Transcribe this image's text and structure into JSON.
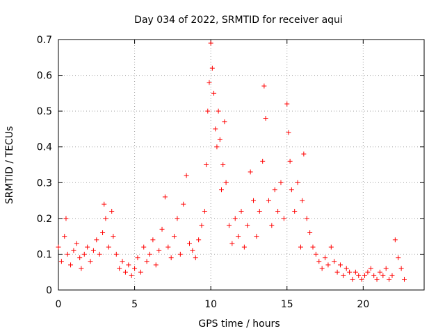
{
  "chart_data": {
    "type": "scatter",
    "title": "Day 034 of 2022, SRMTID for receiver aqui",
    "xlabel": "GPS time / hours",
    "ylabel": "SRMTID / TECUs",
    "xlim": [
      0,
      24
    ],
    "ylim": [
      0,
      0.7
    ],
    "x_ticks": [
      0,
      5,
      10,
      15,
      20
    ],
    "y_ticks": [
      0,
      0.1,
      0.2,
      0.3,
      0.4,
      0.5,
      0.6,
      0.7
    ],
    "x_tick_labels": [
      "0",
      "5",
      "10",
      "15",
      "20"
    ],
    "y_tick_labels": [
      "0",
      "0.1",
      "0.2",
      "0.3",
      "0.4",
      "0.5",
      "0.6",
      "0.7"
    ],
    "grid": true,
    "marker": "plus",
    "series": [
      {
        "name": "SRMTID",
        "color": "#ff0000",
        "x": [
          0.0,
          0.2,
          0.4,
          0.5,
          0.6,
          0.8,
          1.0,
          1.2,
          1.4,
          1.5,
          1.7,
          1.9,
          2.1,
          2.3,
          2.5,
          2.7,
          2.9,
          3.0,
          3.1,
          3.3,
          3.5,
          3.6,
          3.8,
          4.0,
          4.2,
          4.4,
          4.6,
          4.8,
          5.0,
          5.2,
          5.4,
          5.6,
          5.8,
          6.0,
          6.2,
          6.4,
          6.6,
          6.8,
          7.0,
          7.2,
          7.4,
          7.6,
          7.8,
          8.0,
          8.2,
          8.4,
          8.6,
          8.8,
          9.0,
          9.2,
          9.4,
          9.6,
          9.7,
          9.8,
          9.9,
          10.0,
          10.1,
          10.2,
          10.3,
          10.4,
          10.5,
          10.6,
          10.7,
          10.8,
          10.9,
          11.0,
          11.2,
          11.4,
          11.6,
          11.8,
          12.0,
          12.2,
          12.4,
          12.6,
          12.8,
          13.0,
          13.2,
          13.4,
          13.5,
          13.6,
          13.8,
          14.0,
          14.2,
          14.4,
          14.6,
          14.8,
          15.0,
          15.1,
          15.2,
          15.3,
          15.5,
          15.7,
          15.9,
          16.0,
          16.1,
          16.3,
          16.5,
          16.7,
          16.9,
          17.1,
          17.3,
          17.5,
          17.7,
          17.9,
          18.1,
          18.3,
          18.5,
          18.7,
          18.9,
          19.1,
          19.3,
          19.5,
          19.7,
          19.9,
          20.1,
          20.3,
          20.5,
          20.7,
          20.9,
          21.1,
          21.3,
          21.5,
          21.7,
          21.9,
          22.1,
          22.3,
          22.5,
          22.7
        ],
        "values": [
          0.12,
          0.08,
          0.15,
          0.2,
          0.1,
          0.07,
          0.11,
          0.13,
          0.09,
          0.06,
          0.1,
          0.12,
          0.08,
          0.11,
          0.14,
          0.1,
          0.16,
          0.24,
          0.2,
          0.12,
          0.22,
          0.15,
          0.1,
          0.06,
          0.08,
          0.05,
          0.07,
          0.04,
          0.06,
          0.09,
          0.05,
          0.12,
          0.08,
          0.1,
          0.14,
          0.07,
          0.11,
          0.17,
          0.26,
          0.12,
          0.09,
          0.15,
          0.2,
          0.1,
          0.24,
          0.32,
          0.13,
          0.11,
          0.09,
          0.14,
          0.18,
          0.22,
          0.35,
          0.5,
          0.58,
          0.69,
          0.62,
          0.55,
          0.45,
          0.4,
          0.5,
          0.42,
          0.28,
          0.35,
          0.47,
          0.3,
          0.18,
          0.13,
          0.2,
          0.15,
          0.22,
          0.12,
          0.18,
          0.33,
          0.25,
          0.15,
          0.22,
          0.36,
          0.57,
          0.48,
          0.25,
          0.18,
          0.28,
          0.22,
          0.3,
          0.2,
          0.52,
          0.44,
          0.36,
          0.28,
          0.22,
          0.3,
          0.12,
          0.25,
          0.38,
          0.2,
          0.16,
          0.12,
          0.1,
          0.08,
          0.06,
          0.09,
          0.07,
          0.12,
          0.08,
          0.05,
          0.07,
          0.04,
          0.06,
          0.05,
          0.03,
          0.05,
          0.04,
          0.03,
          0.04,
          0.05,
          0.06,
          0.04,
          0.03,
          0.05,
          0.04,
          0.06,
          0.03,
          0.04,
          0.14,
          0.09,
          0.06,
          0.03
        ]
      }
    ]
  }
}
